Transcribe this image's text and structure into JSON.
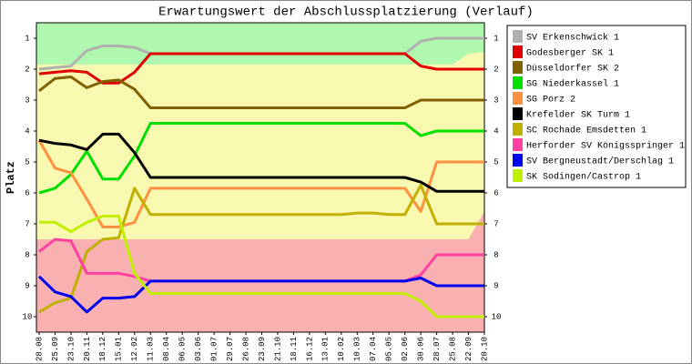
{
  "chart_data": {
    "type": "line",
    "title": "Erwartungswert der Abschlussplatzierung (Verlauf)",
    "ylabel": "Platz",
    "categories": [
      "28.08",
      "25.09",
      "23.10",
      "20.11",
      "18.12",
      "15.01",
      "12.02",
      "11.03",
      "08.04",
      "06.05",
      "03.06",
      "01.07",
      "29.07",
      "26.08",
      "23.09",
      "21.10",
      "18.11",
      "16.12",
      "13.01",
      "10.02",
      "10.03",
      "07.04",
      "05.05",
      "02.06",
      "30.06",
      "28.07",
      "25.08",
      "22.09",
      "20.10"
    ],
    "ylim": [
      10.5,
      0.5
    ],
    "yticks": [
      1,
      2,
      3,
      4,
      5,
      6,
      7,
      8,
      9,
      10
    ],
    "background_color": "#b0f8b0",
    "bands": [
      {
        "color": "#f8f8b0",
        "values": [
          1.85,
          1.85,
          1.85,
          1.85,
          1.85,
          1.85,
          1.85,
          1.85,
          1.85,
          1.85,
          1.85,
          1.85,
          1.85,
          1.85,
          1.85,
          1.85,
          1.85,
          1.85,
          1.85,
          1.85,
          1.85,
          1.85,
          1.85,
          1.85,
          1.85,
          1.85,
          1.85,
          1.5,
          1.45
        ]
      },
      {
        "color": "#f8b0b0",
        "values": [
          7.5,
          7.5,
          7.5,
          7.5,
          7.5,
          7.5,
          7.5,
          7.5,
          7.5,
          7.5,
          7.5,
          7.5,
          7.5,
          7.5,
          7.5,
          7.5,
          7.5,
          7.5,
          7.5,
          7.5,
          7.5,
          7.5,
          7.5,
          7.5,
          7.5,
          7.5,
          7.5,
          7.5,
          6.6
        ]
      }
    ],
    "series": [
      {
        "name": "SV Erkenschwick 1",
        "color": "#b0b0b0",
        "values": [
          2.0,
          1.95,
          1.9,
          1.4,
          1.25,
          1.25,
          1.3,
          1.5,
          1.5,
          1.5,
          1.5,
          1.5,
          1.5,
          1.5,
          1.5,
          1.5,
          1.5,
          1.5,
          1.5,
          1.5,
          1.5,
          1.5,
          1.5,
          1.5,
          1.1,
          1.0,
          1.0,
          1.0,
          1.0
        ]
      },
      {
        "name": "Godesberger SK 1",
        "color": "#e00000",
        "values": [
          2.15,
          2.1,
          2.05,
          2.1,
          2.45,
          2.45,
          2.1,
          1.5,
          1.5,
          1.5,
          1.5,
          1.5,
          1.5,
          1.5,
          1.5,
          1.5,
          1.5,
          1.5,
          1.5,
          1.5,
          1.5,
          1.5,
          1.5,
          1.5,
          1.9,
          2.0,
          2.0,
          2.0,
          2.0
        ]
      },
      {
        "name": "Düsseldorfer SK 2",
        "color": "#806000",
        "values": [
          2.7,
          2.3,
          2.25,
          2.6,
          2.4,
          2.35,
          2.65,
          3.25,
          3.25,
          3.25,
          3.25,
          3.25,
          3.25,
          3.25,
          3.25,
          3.25,
          3.25,
          3.25,
          3.25,
          3.25,
          3.25,
          3.25,
          3.25,
          3.25,
          3.0,
          3.0,
          3.0,
          3.0,
          3.0
        ]
      },
      {
        "name": "SG Niederkassel 1",
        "color": "#00e000",
        "values": [
          6.0,
          5.85,
          5.4,
          4.65,
          5.55,
          5.55,
          4.8,
          3.75,
          3.75,
          3.75,
          3.75,
          3.75,
          3.75,
          3.75,
          3.75,
          3.75,
          3.75,
          3.75,
          3.75,
          3.75,
          3.75,
          3.75,
          3.75,
          3.75,
          4.15,
          4.0,
          4.0,
          4.0,
          4.0
        ]
      },
      {
        "name": "SG Porz 2",
        "color": "#ff9040",
        "values": [
          4.3,
          5.2,
          5.35,
          6.2,
          7.1,
          7.1,
          6.95,
          5.85,
          5.85,
          5.85,
          5.85,
          5.85,
          5.85,
          5.85,
          5.85,
          5.85,
          5.85,
          5.85,
          5.85,
          5.85,
          5.85,
          5.85,
          5.85,
          5.85,
          6.6,
          5.0,
          5.0,
          5.0,
          5.0
        ]
      },
      {
        "name": "Krefelder SK Turm 1",
        "color": "#000000",
        "values": [
          4.3,
          4.4,
          4.45,
          4.6,
          4.1,
          4.1,
          4.7,
          5.5,
          5.5,
          5.5,
          5.5,
          5.5,
          5.5,
          5.5,
          5.5,
          5.5,
          5.5,
          5.5,
          5.5,
          5.5,
          5.5,
          5.5,
          5.5,
          5.5,
          5.65,
          5.95,
          5.95,
          5.95,
          5.95
        ]
      },
      {
        "name": "SC Rochade Emsdetten 1",
        "color": "#c0b000",
        "values": [
          9.85,
          9.55,
          9.4,
          7.9,
          7.5,
          7.45,
          5.85,
          6.7,
          6.7,
          6.7,
          6.7,
          6.7,
          6.7,
          6.7,
          6.7,
          6.7,
          6.7,
          6.7,
          6.7,
          6.7,
          6.65,
          6.65,
          6.7,
          6.7,
          5.75,
          7.0,
          7.0,
          7.0,
          7.0
        ]
      },
      {
        "name": "Herforder SV Königsspringer 1",
        "color": "#ff40a0",
        "values": [
          7.9,
          7.5,
          7.55,
          8.6,
          8.6,
          8.6,
          8.7,
          8.85,
          8.85,
          8.85,
          8.85,
          8.85,
          8.85,
          8.85,
          8.85,
          8.85,
          8.85,
          8.85,
          8.85,
          8.85,
          8.85,
          8.85,
          8.85,
          8.85,
          8.65,
          8.0,
          8.0,
          8.0,
          8.0
        ]
      },
      {
        "name": "SV Bergneustadt/Derschlag 1",
        "color": "#0000f0",
        "values": [
          8.7,
          9.2,
          9.35,
          9.85,
          9.4,
          9.4,
          9.35,
          8.85,
          8.85,
          8.85,
          8.85,
          8.85,
          8.85,
          8.85,
          8.85,
          8.85,
          8.85,
          8.85,
          8.85,
          8.85,
          8.85,
          8.85,
          8.85,
          8.85,
          8.75,
          9.0,
          9.0,
          9.0,
          9.0
        ]
      },
      {
        "name": "SK Sodingen/Castrop 1",
        "color": "#c0f000",
        "values": [
          6.95,
          6.95,
          7.25,
          6.95,
          6.75,
          6.75,
          8.6,
          9.25,
          9.25,
          9.25,
          9.25,
          9.25,
          9.25,
          9.25,
          9.25,
          9.25,
          9.25,
          9.25,
          9.25,
          9.25,
          9.25,
          9.25,
          9.25,
          9.25,
          9.5,
          10.0,
          10.0,
          10.0,
          10.0
        ]
      }
    ]
  }
}
